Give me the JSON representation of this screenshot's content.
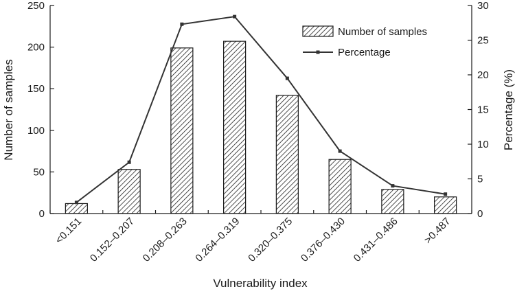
{
  "chart_data": {
    "type": "bar",
    "title": "",
    "xlabel": "Vulnerability index",
    "ylabel": "Number of samples",
    "y2label": "Percentage (%)",
    "categories": [
      "<0.151",
      "0.152–0.207",
      "0.208–0.263",
      "0.264–0.319",
      "0.320–0.375",
      "0.376–0.430",
      "0.431–0.486",
      ">0.487"
    ],
    "series": [
      {
        "name": "Number of samples",
        "type": "bar",
        "axis": "left",
        "values": [
          12,
          53,
          199,
          207,
          142,
          65,
          29,
          20
        ]
      },
      {
        "name": "Percentage",
        "type": "line",
        "axis": "right",
        "values": [
          1.6,
          7.4,
          27.3,
          28.4,
          19.5,
          9.0,
          4.0,
          2.8
        ]
      }
    ],
    "ylim": [
      0,
      250
    ],
    "yticks": [
      0,
      50,
      100,
      150,
      200,
      250
    ],
    "y2lim": [
      0,
      30
    ],
    "y2ticks": [
      0,
      5,
      10,
      15,
      20,
      25,
      30
    ],
    "grid": false,
    "legend_position": "top-right",
    "colors": {
      "axis": "#1a1a1a",
      "bar_fill": "#ffffff",
      "bar_hatch": "#222222",
      "line": "#333333"
    }
  }
}
